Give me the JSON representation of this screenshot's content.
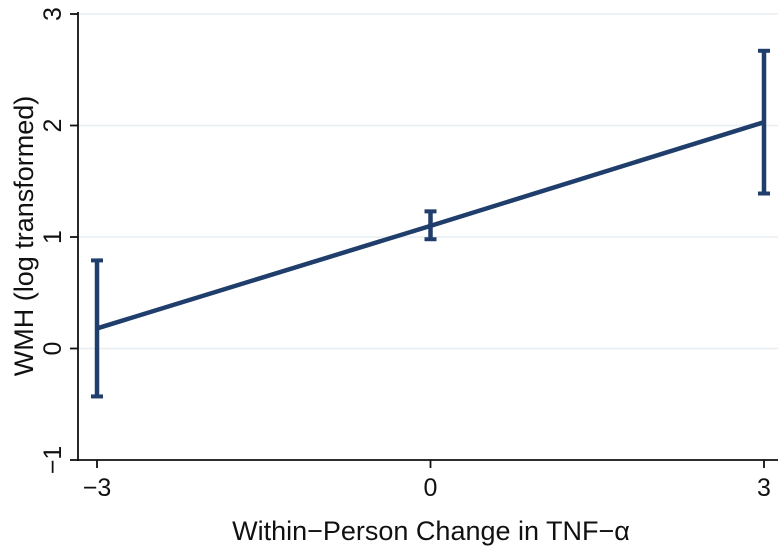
{
  "chart_data": {
    "type": "line",
    "title": "",
    "xlabel": "Within−Person Change in TNF−α",
    "ylabel": "WMH (log transformed)",
    "x": [
      -3,
      0,
      3
    ],
    "series": [
      {
        "values": [
          0.18,
          1.1,
          2.03
        ],
        "error_low": [
          -0.43,
          0.98,
          1.39
        ],
        "error_high": [
          0.79,
          1.23,
          2.67
        ]
      }
    ],
    "xticks": [
      -3,
      0,
      3
    ],
    "xtick_labels": [
      "−3",
      "0",
      "3"
    ],
    "yticks": [
      -1,
      0,
      1,
      2,
      3
    ],
    "ytick_labels": [
      "−1",
      "0",
      "1",
      "2",
      "3"
    ],
    "xlim": [
      -3.1,
      3.15
    ],
    "ylim": [
      -1.0,
      3.0
    ],
    "grid": "horizontal",
    "legend": "none",
    "colors": {
      "series": "#1f3e6b",
      "grid": "#e6eef2",
      "axis": "#111111"
    }
  }
}
